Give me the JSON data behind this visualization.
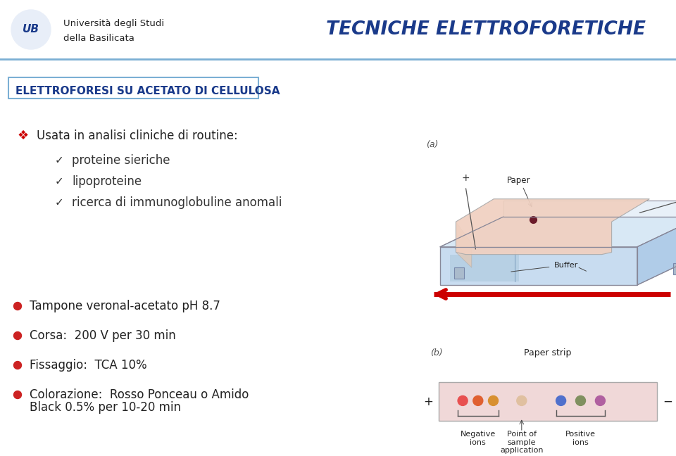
{
  "bg_color": "#ffffff",
  "header_line_color": "#7bafd4",
  "title_text": "TECNICHE ELETTROFORETICHE",
  "title_color": "#1a3a8a",
  "section_box_text": "ELETTROFORESI SU ACETATO DI CELLULOSA",
  "section_box_color": "#1a3a8a",
  "section_box_border": "#7bafd4",
  "bullet1_symbol": "❖",
  "bullet1_color": "#cc0000",
  "bullet1_text": "Usata in analisi cliniche di routine:",
  "check_items": [
    "proteine sieriche",
    "lipoproteine",
    "ricerca di immunoglobuline anomali"
  ],
  "red_bullets": [
    "Tampone veronal-acetato pH 8.7",
    "Corsa:  200 V per 30 min",
    "Fissaggio:  TCA 10%",
    "Colorazione:  Rosso Ponceau o Amido"
  ],
  "last_bullet_line2": "Black 0.5% per 10-20 min",
  "label_a": "(a)",
  "label_b": "(b)",
  "arrow_color": "#cc0000",
  "tank_blue_light": "#c8dcf0",
  "tank_blue_mid": "#b0cce8",
  "tank_blue_dark": "#98b8d8",
  "paper_color": "#f0d0c0",
  "sample_color": "#6b1a2a",
  "strip_bg": "#f0d8d8",
  "dot_colors_neg": [
    "#e85050",
    "#e06030",
    "#d89030"
  ],
  "dot_color_app": [
    "#e0c0a0"
  ],
  "dot_colors_pos": [
    "#5070cc",
    "#809060",
    "#b060a0"
  ]
}
